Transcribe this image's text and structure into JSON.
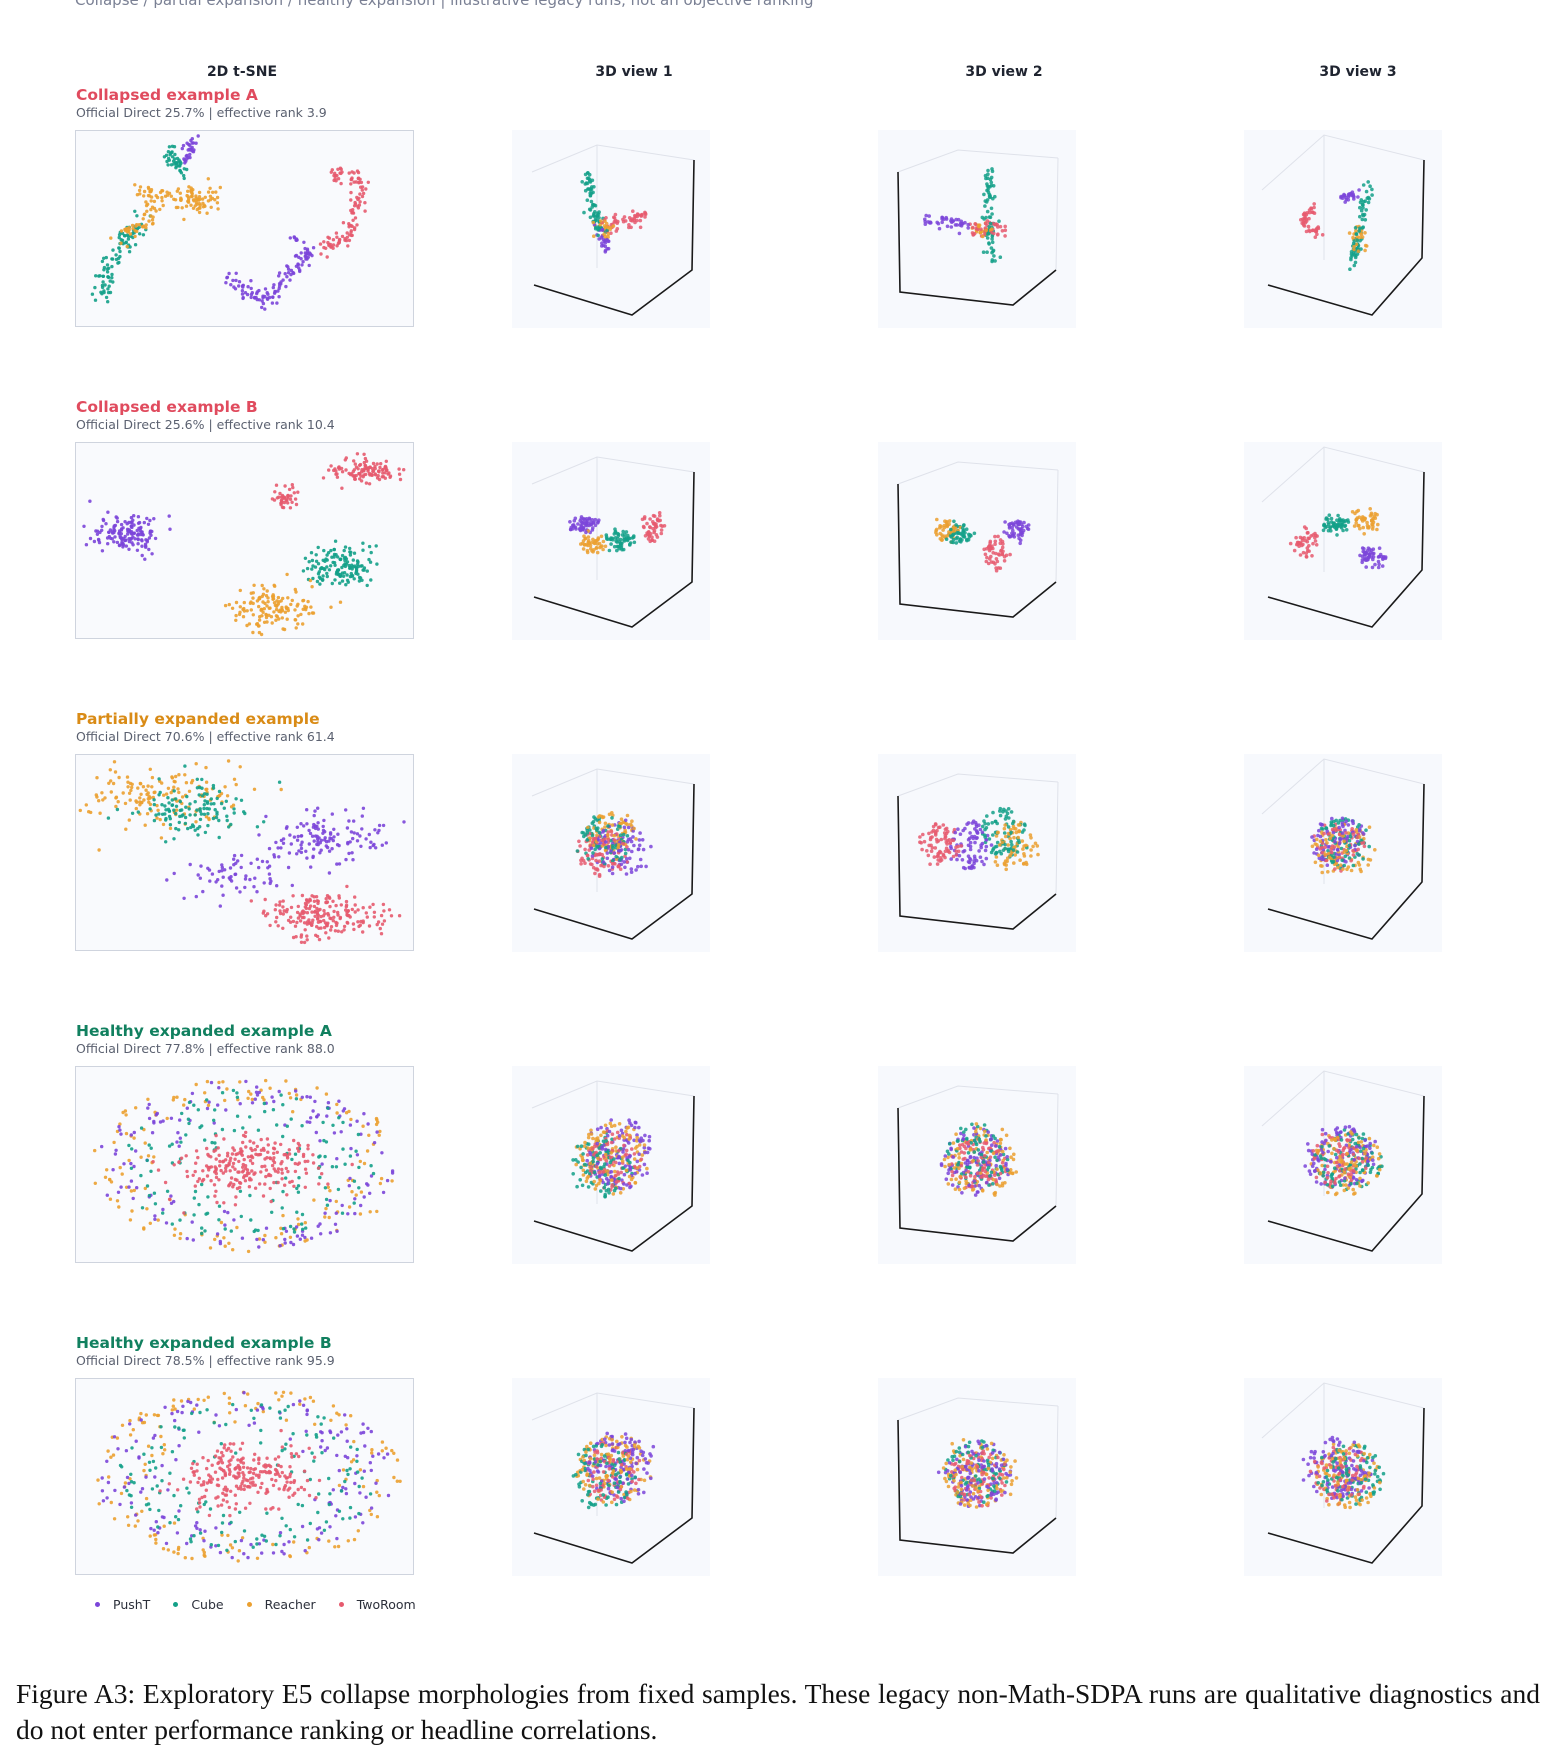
{
  "subtitle": "Collapse / partial expansion / healthy expansion | illustrative legacy runs, not an objective ranking",
  "columns": [
    "2D t-SNE",
    "3D view 1",
    "3D view 2",
    "3D view 3"
  ],
  "colors": {
    "PushT": "#7b45d9",
    "Cube": "#13a088",
    "Reacher": "#eba030",
    "TwoRoom": "#e65a6e",
    "collapsed_title": "#e04b5e",
    "partial_title": "#d98b16",
    "healthy_title": "#11805f"
  },
  "rows": [
    {
      "title": "Collapsed example A",
      "title_color": "#e04b5e",
      "stats": "Official Direct 25.7%  |  effective rank 3.9",
      "morphology": "collapsed-a"
    },
    {
      "title": "Collapsed example B",
      "title_color": "#e04b5e",
      "stats": "Official Direct 25.6%  |  effective rank 10.4",
      "morphology": "collapsed-b"
    },
    {
      "title": "Partially expanded example",
      "title_color": "#d98b16",
      "stats": "Official Direct 70.6%  |  effective rank 61.4",
      "morphology": "partial"
    },
    {
      "title": "Healthy expanded example A",
      "title_color": "#11805f",
      "stats": "Official Direct 77.8%  |  effective rank 88.0",
      "morphology": "healthy"
    },
    {
      "title": "Healthy expanded example B",
      "title_color": "#11805f",
      "stats": "Official Direct 78.5%  |  effective rank 95.9",
      "morphology": "healthy"
    }
  ],
  "legend": [
    {
      "label": "PushT",
      "color": "#7b45d9"
    },
    {
      "label": "Cube",
      "color": "#13a088"
    },
    {
      "label": "Reacher",
      "color": "#eba030"
    },
    {
      "label": "TwoRoom",
      "color": "#e65a6e"
    }
  ],
  "caption": "Figure A3: Exploratory E5 collapse morphologies from fixed samples. These legacy non-Math-SDPA runs are qualitative diagnostics and do not enter performance ranking or headline correlations."
}
